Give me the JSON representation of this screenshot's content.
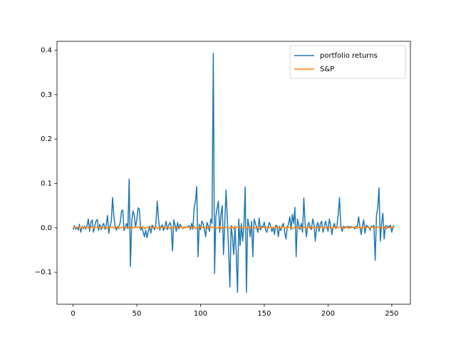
{
  "chart_data": {
    "type": "line",
    "x": [
      0,
      1,
      2,
      3,
      4,
      5,
      6,
      7,
      8,
      9,
      10,
      11,
      12,
      13,
      14,
      15,
      16,
      17,
      18,
      19,
      20,
      21,
      22,
      23,
      24,
      25,
      26,
      27,
      28,
      29,
      30,
      31,
      32,
      33,
      34,
      35,
      36,
      37,
      38,
      39,
      40,
      41,
      42,
      43,
      44,
      45,
      46,
      47,
      48,
      49,
      50,
      51,
      52,
      53,
      54,
      55,
      56,
      57,
      58,
      59,
      60,
      61,
      62,
      63,
      64,
      65,
      66,
      67,
      68,
      69,
      70,
      71,
      72,
      73,
      74,
      75,
      76,
      77,
      78,
      79,
      80,
      81,
      82,
      83,
      84,
      85,
      86,
      87,
      88,
      89,
      90,
      91,
      92,
      93,
      94,
      95,
      96,
      97,
      98,
      99,
      100,
      101,
      102,
      103,
      104,
      105,
      106,
      107,
      108,
      109,
      110,
      111,
      112,
      113,
      114,
      115,
      116,
      117,
      118,
      119,
      120,
      121,
      122,
      123,
      124,
      125,
      126,
      127,
      128,
      129,
      130,
      131,
      132,
      133,
      134,
      135,
      136,
      137,
      138,
      139,
      140,
      141,
      142,
      143,
      144,
      145,
      146,
      147,
      148,
      149,
      150,
      151,
      152,
      153,
      154,
      155,
      156,
      157,
      158,
      159,
      160,
      161,
      162,
      163,
      164,
      165,
      166,
      167,
      168,
      169,
      170,
      171,
      172,
      173,
      174,
      175,
      176,
      177,
      178,
      179,
      180,
      181,
      182,
      183,
      184,
      185,
      186,
      187,
      188,
      189,
      190,
      191,
      192,
      193,
      194,
      195,
      196,
      197,
      198,
      199,
      200,
      201,
      202,
      203,
      204,
      205,
      206,
      207,
      208,
      209,
      210,
      211,
      212,
      213,
      214,
      215,
      216,
      217,
      218,
      219,
      220,
      221,
      222,
      223,
      224,
      225,
      226,
      227,
      228,
      229,
      230,
      231,
      232,
      233,
      234,
      235,
      236,
      237,
      238,
      239,
      240,
      241,
      242,
      243,
      244,
      245,
      246,
      247,
      248,
      249,
      250,
      251,
      252
    ],
    "series": [
      {
        "name": "portfolio returns",
        "color": "#1f77b4",
        "values": [
          -0.004,
          0.005,
          -0.003,
          0.002,
          -0.005,
          0.008,
          -0.01,
          0.003,
          -0.002,
          0.004,
          -0.003,
          0.006,
          0.02,
          -0.008,
          0.012,
          0.018,
          -0.01,
          0.004,
          0.015,
          0.019,
          -0.006,
          0.008,
          -0.004,
          0.005,
          0.01,
          -0.003,
          0.006,
          0.028,
          -0.012,
          0.004,
          0.015,
          0.068,
          0.025,
          0.003,
          -0.005,
          0.002,
          0.004,
          0.012,
          0.038,
          0.04,
          -0.006,
          0.002,
          0.01,
          -0.002,
          0.11,
          -0.087,
          0.015,
          0.038,
          0.028,
          0.001,
          0.018,
          0.045,
          0.042,
          -0.005,
          0.002,
          -0.01,
          -0.02,
          -0.005,
          -0.022,
          -0.008,
          0.004,
          -0.012,
          0.006,
          0.002,
          -0.004,
          0.01,
          0.06,
          0.02,
          -0.005,
          0.003,
          0.007,
          -0.006,
          0.003,
          0.015,
          -0.004,
          0.006,
          0.012,
          0.003,
          -0.052,
          0.018,
          0.006,
          -0.008,
          0.012,
          -0.003,
          0.008,
          0.004,
          -0.002,
          0.002,
          0.001,
          0.002,
          0.002,
          0.005,
          -0.004,
          0.01,
          -0.003,
          0.045,
          0.06,
          0.093,
          -0.065,
          0.008,
          -0.004,
          0.015,
          0.01,
          -0.003,
          -0.02,
          0.012,
          0.005,
          -0.008,
          0.02,
          0.01,
          0.393,
          -0.103,
          0.025,
          0.045,
          0.06,
          -0.01,
          0.03,
          0.05,
          -0.06,
          0.01,
          0.085,
          0.02,
          -0.05,
          -0.133,
          0.005,
          -0.02,
          -0.06,
          0.004,
          -0.06,
          -0.145,
          0.02,
          -0.04,
          0.01,
          -0.03,
          0.005,
          0.092,
          -0.145,
          0.02,
          0.005,
          -0.02,
          0.015,
          -0.065,
          0.02,
          0.01,
          0.0,
          -0.01,
          0.022,
          -0.005,
          0.004,
          0.003,
          0.013,
          -0.005,
          -0.01,
          0.003,
          0.012,
          0.004,
          -0.008,
          0.002,
          -0.015,
          0.006,
          0.004,
          -0.02,
          0.003,
          -0.006,
          0.005,
          0.01,
          -0.01,
          -0.025,
          0.002,
          0.008,
          0.025,
          -0.004,
          0.03,
          0.01,
          0.046,
          -0.065,
          0.02,
          0.006,
          -0.004,
          0.01,
          -0.01,
          0.067,
          0.01,
          -0.02,
          0.005,
          0.012,
          0.003,
          -0.004,
          0.02,
          0.008,
          -0.03,
          0.004,
          0.012,
          -0.008,
          0.01,
          0.015,
          -0.01,
          0.002,
          0.015,
          0.004,
          -0.008,
          0.02,
          0.005,
          -0.015,
          0.003,
          0.01,
          -0.002,
          0.004,
          0.03,
          0.068,
          0.005,
          -0.008,
          0.003,
          0.002,
          0.0,
          0.004,
          0.002,
          0.002,
          0.003,
          0.001,
          0.002,
          -0.002,
          0.004,
          0.003,
          0.025,
          0.001,
          -0.015,
          0.005,
          0.018,
          -0.012,
          0.006,
          0.003,
          0.002,
          -0.005,
          0.004,
          0.002,
          0.006,
          -0.073,
          0.028,
          0.045,
          0.09,
          -0.03,
          0.01,
          0.033,
          -0.025,
          0.005,
          0.003,
          0.004,
          0.002,
          0.006,
          -0.01,
          0.003,
          0.005
        ]
      },
      {
        "name": "S&P",
        "color": "#ff7f0e",
        "values": [
          0.001,
          0.002,
          0.0,
          -0.001,
          0.001,
          0.003,
          -0.002,
          0.001,
          0.0,
          0.002,
          0.001,
          0.002,
          0.0,
          -0.001,
          0.001,
          0.003,
          -0.002,
          0.001,
          0.0,
          0.002,
          0.001,
          0.002,
          0.0,
          -0.001,
          0.001,
          0.003,
          -0.002,
          0.001,
          0.0,
          0.002,
          0.001,
          0.002,
          0.0,
          -0.001,
          0.001,
          0.003,
          -0.002,
          0.001,
          0.0,
          0.002,
          0.001,
          0.002,
          0.0,
          -0.001,
          0.001,
          0.003,
          -0.002,
          0.001,
          0.0,
          0.002,
          0.001,
          0.002,
          0.0,
          -0.001,
          0.001,
          0.003,
          -0.002,
          0.001,
          0.0,
          0.002,
          0.001,
          0.002,
          0.0,
          -0.001,
          0.001,
          0.003,
          -0.002,
          0.001,
          0.0,
          0.002,
          0.001,
          0.002,
          0.0,
          -0.001,
          0.001,
          0.003,
          -0.002,
          0.001,
          0.0,
          0.002,
          0.001,
          0.002,
          0.0,
          -0.001,
          0.001,
          0.003,
          -0.002,
          0.001,
          0.0,
          0.002,
          0.001,
          0.002,
          0.0,
          -0.001,
          0.001,
          0.003,
          -0.002,
          0.001,
          0.0,
          0.002,
          0.001,
          0.002,
          0.0,
          -0.001,
          0.001,
          0.003,
          -0.002,
          0.001,
          0.0,
          0.002,
          0.001,
          0.002,
          0.0,
          -0.001,
          0.001,
          0.003,
          -0.002,
          0.001,
          0.0,
          0.002,
          0.001,
          0.002,
          0.0,
          -0.001,
          0.001,
          0.003,
          -0.002,
          0.001,
          0.0,
          0.002,
          0.001,
          0.002,
          0.0,
          -0.001,
          0.001,
          0.003,
          -0.002,
          0.001,
          0.0,
          0.002,
          0.001,
          0.002,
          0.0,
          -0.001,
          0.001,
          0.003,
          -0.002,
          0.001,
          0.0,
          0.002,
          0.001,
          0.002,
          0.0,
          -0.001,
          0.001,
          0.003,
          -0.002,
          0.001,
          0.0,
          0.002,
          0.001,
          0.002,
          0.0,
          -0.001,
          0.001,
          0.003,
          -0.002,
          0.001,
          0.0,
          0.002,
          0.001,
          0.002,
          0.0,
          -0.001,
          0.001,
          0.003,
          -0.002,
          0.001,
          0.0,
          0.002,
          0.001,
          0.002,
          0.0,
          -0.001,
          0.001,
          0.003,
          -0.002,
          0.001,
          0.0,
          0.002,
          0.001,
          0.002,
          0.0,
          -0.001,
          0.001,
          0.003,
          -0.002,
          0.001,
          0.0,
          0.002,
          0.001,
          0.002,
          0.0,
          -0.001,
          0.001,
          0.003,
          -0.002,
          0.001,
          0.0,
          0.002,
          0.001,
          0.002,
          0.0,
          -0.001,
          0.001,
          0.003,
          -0.002,
          0.001,
          0.0,
          0.002,
          0.001,
          0.002,
          0.0,
          -0.001,
          0.001,
          0.003,
          -0.002,
          0.001,
          0.0,
          0.002,
          0.001,
          0.002,
          0.0,
          -0.001,
          0.001,
          0.003,
          -0.002,
          0.001,
          0.0,
          0.002,
          0.001,
          0.002,
          0.0,
          -0.001,
          0.001,
          0.003,
          -0.002,
          0.001,
          0.0,
          0.002,
          0.001,
          0.002,
          0.0
        ]
      }
    ],
    "xlim": [
      -12.6,
      264.6
    ],
    "ylim": [
      -0.172,
      0.42
    ],
    "xticks": [
      0,
      50,
      100,
      150,
      200,
      250
    ],
    "yticks": [
      {
        "value": -0.1,
        "label": "−0.1"
      },
      {
        "value": 0,
        "label": "0.0"
      },
      0.1,
      0.2,
      0.3,
      0.4
    ],
    "legend": "upper right"
  }
}
